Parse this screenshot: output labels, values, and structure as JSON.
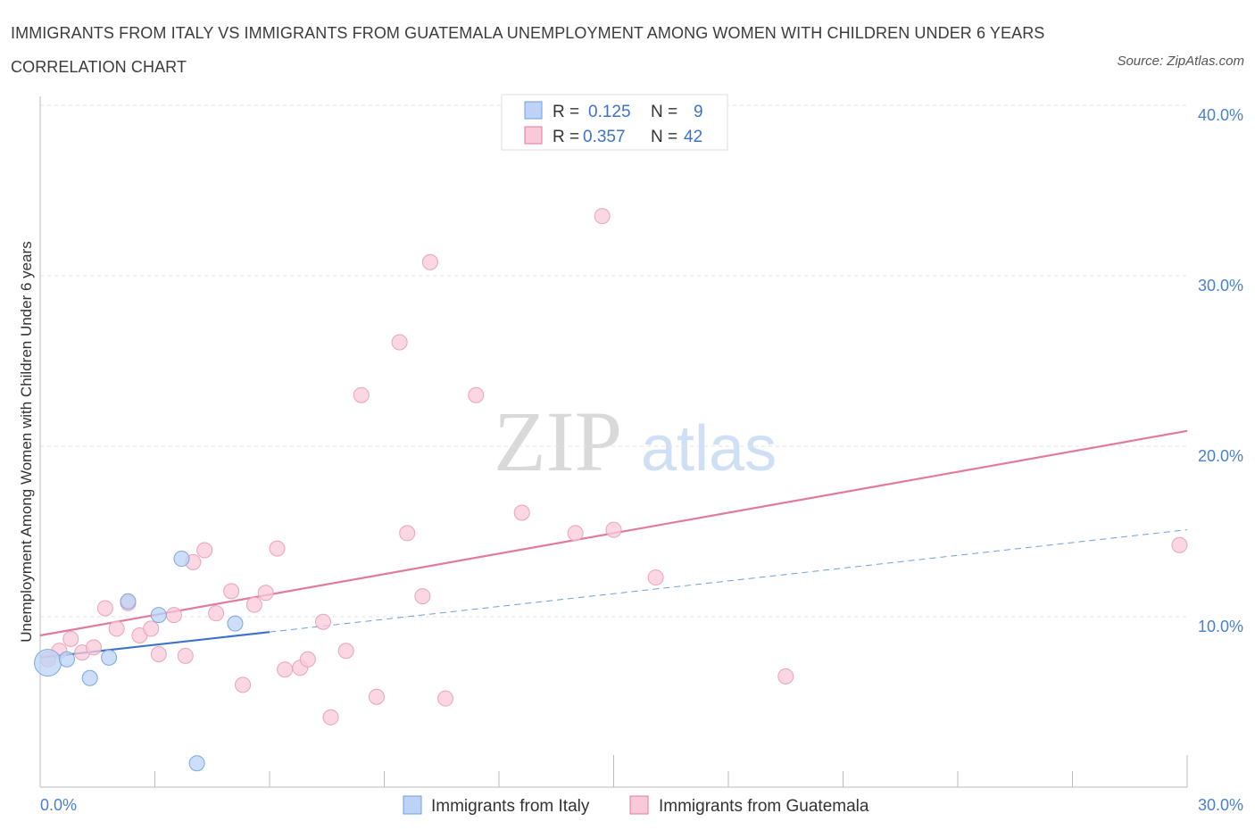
{
  "title": "IMMIGRANTS FROM ITALY VS IMMIGRANTS FROM GUATEMALA UNEMPLOYMENT AMONG WOMEN WITH CHILDREN UNDER 6 YEARS CORRELATION CHART",
  "source": "Source: ZipAtlas.com",
  "watermark": {
    "zip": "ZIP",
    "atlas": "atlas"
  },
  "colors": {
    "italy": "#6f9ee0",
    "italy_fill": "#bcd3f5",
    "guatemala": "#e07aa0",
    "guatemala_fill": "#f8c9d8",
    "accent": "#3b73c8"
  },
  "legend": {
    "rows": [
      {
        "r_label": "R =",
        "r_value": "0.125",
        "n_label": "N =",
        "n_value": "9"
      },
      {
        "r_label": "R =",
        "r_value": "0.357",
        "n_label": "N =",
        "n_value": "42"
      }
    ]
  },
  "chart_data": {
    "type": "scatter",
    "title": "IMMIGRANTS FROM ITALY VS IMMIGRANTS FROM GUATEMALA UNEMPLOYMENT AMONG WOMEN WITH CHILDREN UNDER 6 YEARS CORRELATION CHART",
    "xlabel": "",
    "ylabel": "Unemployment Among Women with Children Under 6 years",
    "xlim": [
      0,
      30
    ],
    "ylim": [
      0,
      40
    ],
    "x_tick_labels": [
      "0.0%",
      "30.0%"
    ],
    "y_ticks": [
      10,
      20,
      30,
      40
    ],
    "y_tick_labels": [
      "10.0%",
      "20.0%",
      "30.0%",
      "40.0%"
    ],
    "grid": true,
    "legend_position": "top-center",
    "series": [
      {
        "name": "Immigrants from Italy",
        "r": 0.125,
        "n": 9,
        "points": [
          {
            "x": 0.2,
            "y": 7.3,
            "big": true
          },
          {
            "x": 0.7,
            "y": 7.5
          },
          {
            "x": 1.3,
            "y": 6.4
          },
          {
            "x": 1.8,
            "y": 7.6
          },
          {
            "x": 2.3,
            "y": 10.9
          },
          {
            "x": 3.1,
            "y": 10.1
          },
          {
            "x": 3.7,
            "y": 13.4
          },
          {
            "x": 4.1,
            "y": 1.4
          },
          {
            "x": 5.1,
            "y": 9.6
          }
        ],
        "trend": {
          "x0": 0,
          "y0": 7.6,
          "x1": 6.0,
          "y1": 9.1,
          "dash_to_x": 30,
          "dash_to_y": 15.1
        }
      },
      {
        "name": "Immigrants from Guatemala",
        "r": 0.357,
        "n": 42,
        "points": [
          {
            "x": 0.2,
            "y": 7.5
          },
          {
            "x": 0.5,
            "y": 8.0
          },
          {
            "x": 0.8,
            "y": 8.7
          },
          {
            "x": 1.1,
            "y": 7.9
          },
          {
            "x": 1.4,
            "y": 8.2
          },
          {
            "x": 1.7,
            "y": 10.5
          },
          {
            "x": 2.0,
            "y": 9.3
          },
          {
            "x": 2.3,
            "y": 10.8
          },
          {
            "x": 2.6,
            "y": 8.9
          },
          {
            "x": 2.9,
            "y": 9.3
          },
          {
            "x": 3.1,
            "y": 7.8
          },
          {
            "x": 3.5,
            "y": 10.1
          },
          {
            "x": 3.8,
            "y": 7.7
          },
          {
            "x": 4.0,
            "y": 13.2
          },
          {
            "x": 4.3,
            "y": 13.9
          },
          {
            "x": 4.6,
            "y": 10.2
          },
          {
            "x": 5.0,
            "y": 11.5
          },
          {
            "x": 5.3,
            "y": 6.0
          },
          {
            "x": 5.6,
            "y": 10.7
          },
          {
            "x": 5.9,
            "y": 11.4
          },
          {
            "x": 6.2,
            "y": 14.0
          },
          {
            "x": 6.4,
            "y": 6.9
          },
          {
            "x": 6.8,
            "y": 7.0
          },
          {
            "x": 7.0,
            "y": 7.5
          },
          {
            "x": 7.4,
            "y": 9.7
          },
          {
            "x": 7.6,
            "y": 4.1
          },
          {
            "x": 8.0,
            "y": 8.0
          },
          {
            "x": 8.4,
            "y": 23.0
          },
          {
            "x": 8.8,
            "y": 5.3
          },
          {
            "x": 9.4,
            "y": 26.1
          },
          {
            "x": 9.6,
            "y": 14.9
          },
          {
            "x": 10.0,
            "y": 11.2
          },
          {
            "x": 10.2,
            "y": 30.8
          },
          {
            "x": 10.6,
            "y": 5.2
          },
          {
            "x": 11.4,
            "y": 23.0
          },
          {
            "x": 12.6,
            "y": 16.1
          },
          {
            "x": 14.0,
            "y": 14.9
          },
          {
            "x": 14.7,
            "y": 33.5
          },
          {
            "x": 15.0,
            "y": 15.1
          },
          {
            "x": 16.1,
            "y": 12.3
          },
          {
            "x": 19.5,
            "y": 6.5
          },
          {
            "x": 29.8,
            "y": 14.2
          }
        ],
        "trend": {
          "x0": 0,
          "y0": 8.9,
          "x1": 30,
          "y1": 20.9
        }
      }
    ]
  },
  "bottom_legend": {
    "italy": "Immigrants from Italy",
    "guatemala": "Immigrants from Guatemala"
  }
}
